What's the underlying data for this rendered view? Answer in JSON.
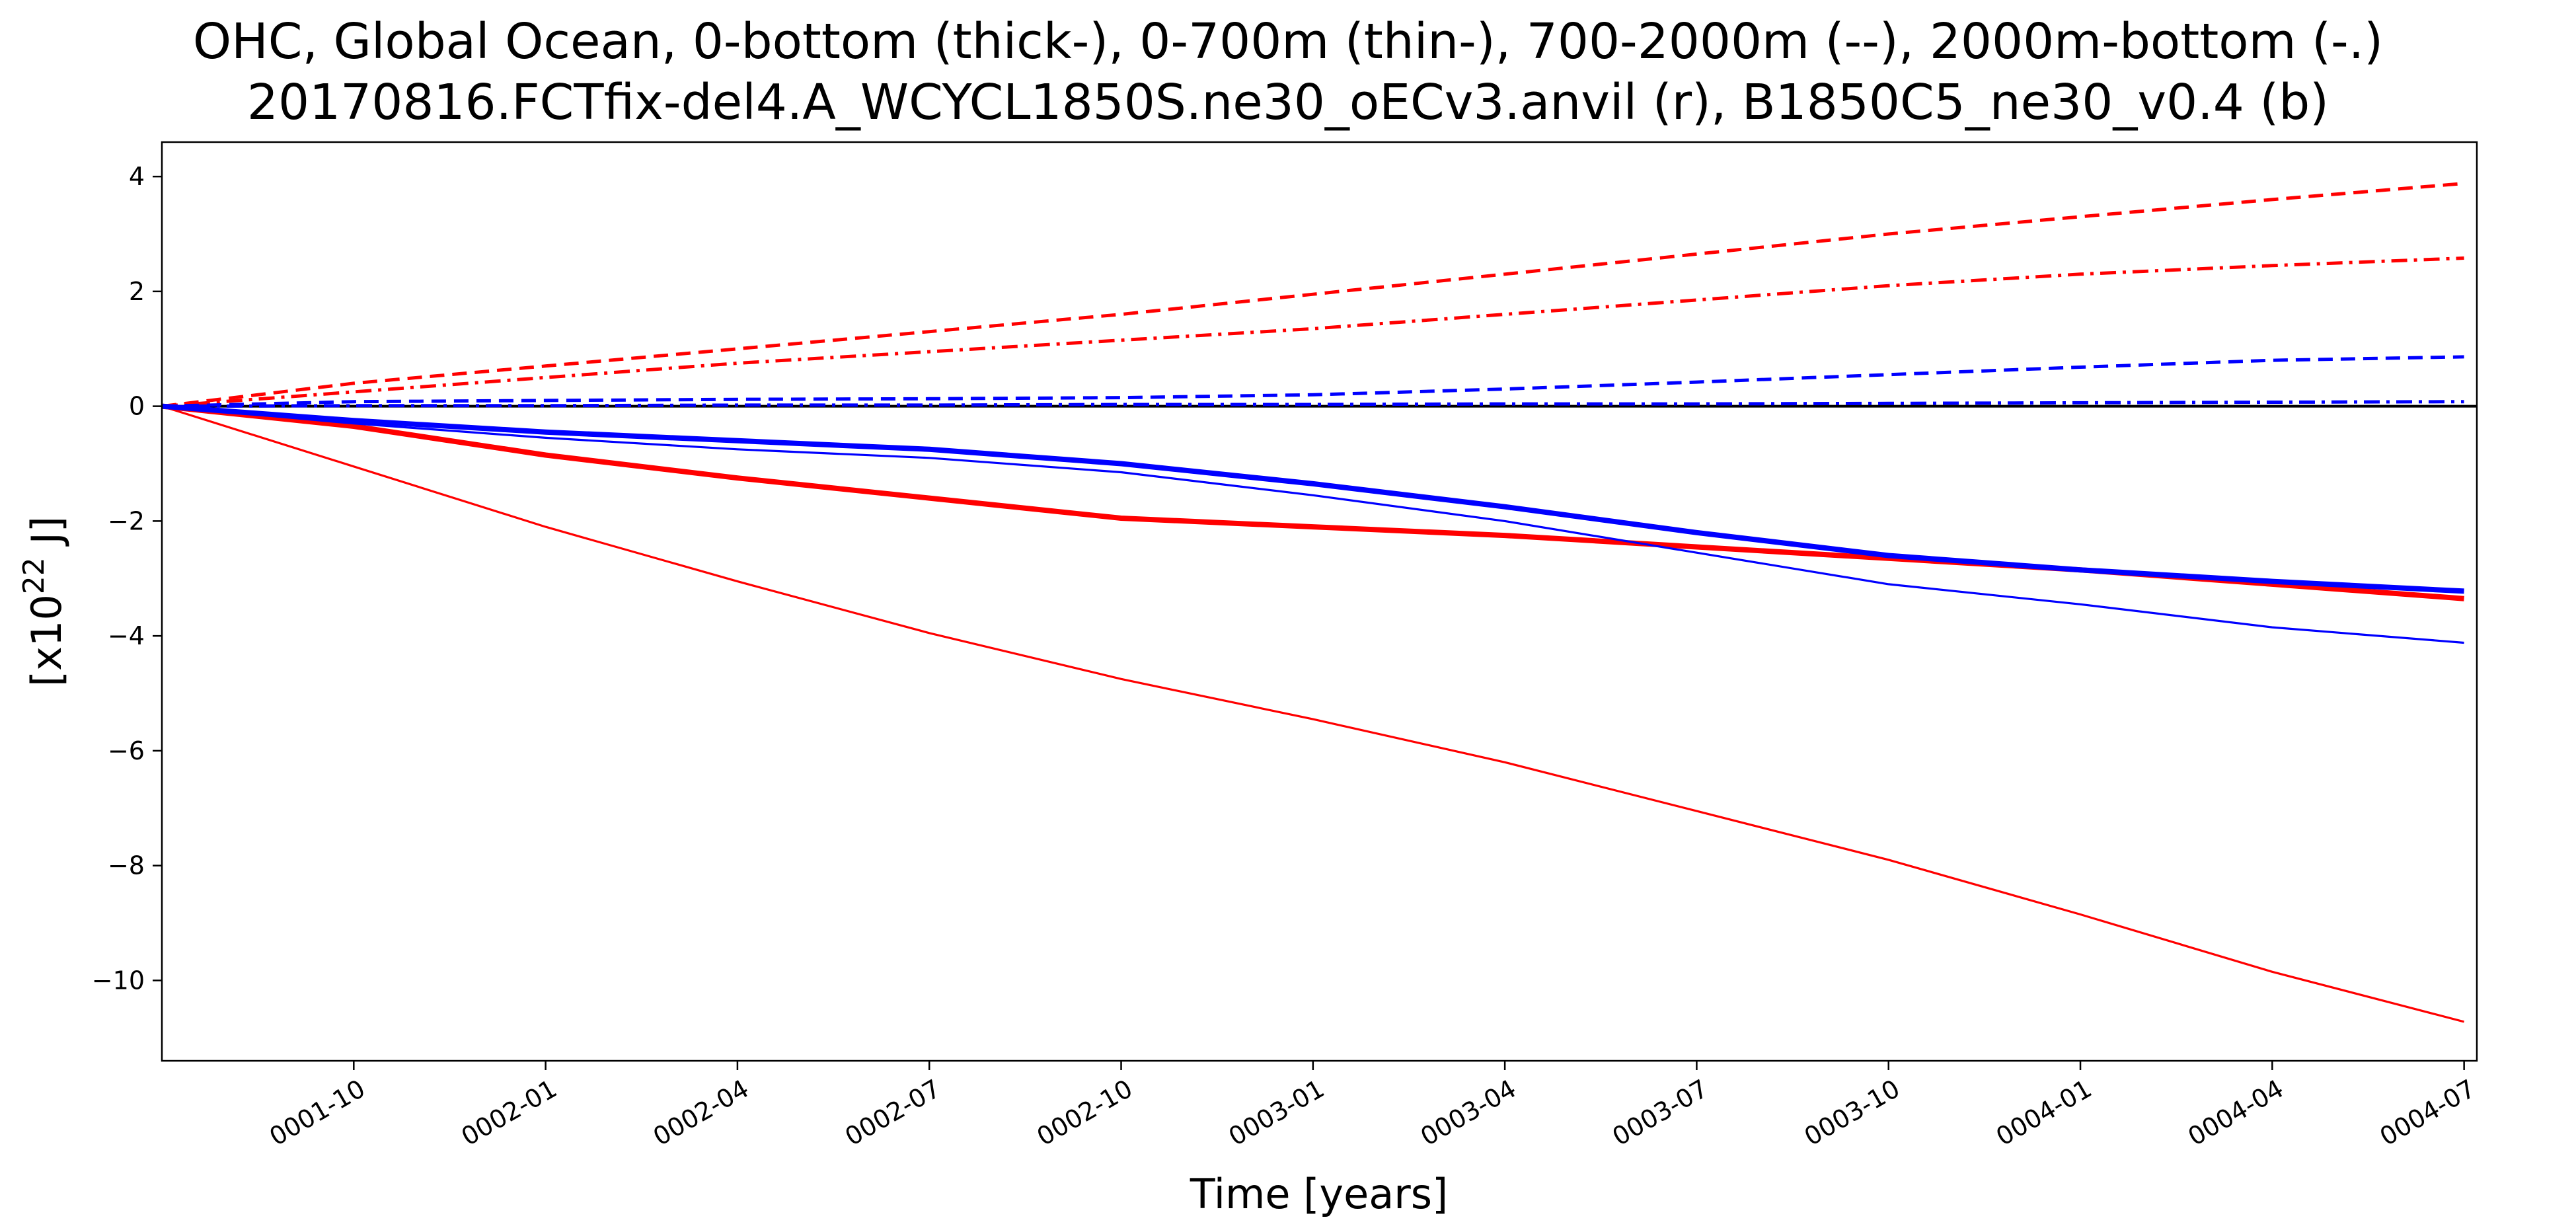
{
  "chart_data": {
    "type": "line",
    "title_line1": "OHC, Global Ocean, 0-bottom (thick-), 0-700m (thin-), 700-2000m (--), 2000m-bottom (-.)",
    "title_line2": "20170816.FCTfix-del4.A_WCYCL1850S.ne30_oECv3.anvil (r), B1850C5_ne30_v0.4 (b)",
    "xlabel": "Time [years]",
    "ylabel": "[x10",
    "ylabel_sup": "22",
    "ylabel_suffix": " J]",
    "xlim": [
      "0001-07",
      "0004-07"
    ],
    "ylim": [
      -11.4,
      4.6
    ],
    "x_ticks": [
      "0001-10",
      "0002-01",
      "0002-04",
      "0002-07",
      "0002-10",
      "0003-01",
      "0003-04",
      "0003-07",
      "0003-10",
      "0004-01",
      "0004-04",
      "0004-07"
    ],
    "y_ticks": [
      4,
      2,
      0,
      -2,
      -4,
      -6,
      -8,
      -10
    ],
    "y_tick_labels": [
      "4",
      "2",
      "0",
      "−2",
      "−4",
      "−6",
      "−8",
      "−10"
    ],
    "zero_line": true,
    "grid": false,
    "legend": "none",
    "series": [
      {
        "color": "#ff0000",
        "style": "solid",
        "width": "thick",
        "points": [
          [
            "0001-07",
            0
          ],
          [
            "0001-10",
            -0.35
          ],
          [
            "0002-01",
            -0.85
          ],
          [
            "0002-04",
            -1.25
          ],
          [
            "0002-07",
            -1.6
          ],
          [
            "0002-10",
            -1.95
          ],
          [
            "0003-01",
            -2.1
          ],
          [
            "0003-04",
            -2.25
          ],
          [
            "0003-07",
            -2.45
          ],
          [
            "0003-10",
            -2.65
          ],
          [
            "0004-01",
            -2.85
          ],
          [
            "0004-04",
            -3.1
          ],
          [
            "0004-07",
            -3.35
          ]
        ]
      },
      {
        "color": "#ff0000",
        "style": "solid",
        "width": "thin",
        "points": [
          [
            "0001-07",
            0
          ],
          [
            "0001-10",
            -1.05
          ],
          [
            "0002-01",
            -2.1
          ],
          [
            "0002-04",
            -3.05
          ],
          [
            "0002-07",
            -3.95
          ],
          [
            "0002-10",
            -4.75
          ],
          [
            "0003-01",
            -5.45
          ],
          [
            "0003-04",
            -6.2
          ],
          [
            "0003-07",
            -7.05
          ],
          [
            "0003-10",
            -7.9
          ],
          [
            "0004-01",
            -8.85
          ],
          [
            "0004-04",
            -9.85
          ],
          [
            "0004-07",
            -10.72
          ]
        ]
      },
      {
        "color": "#ff0000",
        "style": "dashed",
        "width": "medium",
        "points": [
          [
            "0001-07",
            0
          ],
          [
            "0001-10",
            0.4
          ],
          [
            "0002-01",
            0.7
          ],
          [
            "0002-04",
            1.0
          ],
          [
            "0002-07",
            1.3
          ],
          [
            "0002-10",
            1.6
          ],
          [
            "0003-01",
            1.95
          ],
          [
            "0003-04",
            2.3
          ],
          [
            "0003-07",
            2.65
          ],
          [
            "0003-10",
            3.0
          ],
          [
            "0004-01",
            3.3
          ],
          [
            "0004-04",
            3.6
          ],
          [
            "0004-07",
            3.88
          ]
        ]
      },
      {
        "color": "#ff0000",
        "style": "dashdot",
        "width": "medium",
        "points": [
          [
            "0001-07",
            0
          ],
          [
            "0001-10",
            0.25
          ],
          [
            "0002-01",
            0.5
          ],
          [
            "0002-04",
            0.75
          ],
          [
            "0002-07",
            0.95
          ],
          [
            "0002-10",
            1.15
          ],
          [
            "0003-01",
            1.35
          ],
          [
            "0003-04",
            1.6
          ],
          [
            "0003-07",
            1.85
          ],
          [
            "0003-10",
            2.1
          ],
          [
            "0004-01",
            2.3
          ],
          [
            "0004-04",
            2.45
          ],
          [
            "0004-07",
            2.58
          ]
        ]
      },
      {
        "color": "#0000ff",
        "style": "solid",
        "width": "thick",
        "points": [
          [
            "0001-07",
            0
          ],
          [
            "0001-10",
            -0.25
          ],
          [
            "0002-01",
            -0.45
          ],
          [
            "0002-04",
            -0.6
          ],
          [
            "0002-07",
            -0.75
          ],
          [
            "0002-10",
            -1.0
          ],
          [
            "0003-01",
            -1.35
          ],
          [
            "0003-04",
            -1.75
          ],
          [
            "0003-07",
            -2.2
          ],
          [
            "0003-10",
            -2.6
          ],
          [
            "0004-01",
            -2.85
          ],
          [
            "0004-04",
            -3.05
          ],
          [
            "0004-07",
            -3.22
          ]
        ]
      },
      {
        "color": "#0000ff",
        "style": "solid",
        "width": "thin",
        "points": [
          [
            "0001-07",
            0
          ],
          [
            "0001-10",
            -0.3
          ],
          [
            "0002-01",
            -0.55
          ],
          [
            "0002-04",
            -0.75
          ],
          [
            "0002-07",
            -0.9
          ],
          [
            "0002-10",
            -1.15
          ],
          [
            "0003-01",
            -1.55
          ],
          [
            "0003-04",
            -2.0
          ],
          [
            "0003-07",
            -2.55
          ],
          [
            "0003-10",
            -3.1
          ],
          [
            "0004-01",
            -3.45
          ],
          [
            "0004-04",
            -3.85
          ],
          [
            "0004-07",
            -4.12
          ]
        ]
      },
      {
        "color": "#0000ff",
        "style": "dashed",
        "width": "medium",
        "points": [
          [
            "0001-07",
            0
          ],
          [
            "0001-10",
            0.08
          ],
          [
            "0002-01",
            0.1
          ],
          [
            "0002-04",
            0.12
          ],
          [
            "0002-07",
            0.13
          ],
          [
            "0002-10",
            0.15
          ],
          [
            "0003-01",
            0.2
          ],
          [
            "0003-04",
            0.3
          ],
          [
            "0003-07",
            0.42
          ],
          [
            "0003-10",
            0.55
          ],
          [
            "0004-01",
            0.68
          ],
          [
            "0004-04",
            0.8
          ],
          [
            "0004-07",
            0.86
          ]
        ]
      },
      {
        "color": "#0000ff",
        "style": "dashdot",
        "width": "medium",
        "points": [
          [
            "0001-07",
            0
          ],
          [
            "0001-10",
            0.01
          ],
          [
            "0002-01",
            0.01
          ],
          [
            "0002-04",
            0.02
          ],
          [
            "0002-07",
            0.02
          ],
          [
            "0002-10",
            0.03
          ],
          [
            "0003-01",
            0.03
          ],
          [
            "0003-04",
            0.04
          ],
          [
            "0003-07",
            0.04
          ],
          [
            "0003-10",
            0.05
          ],
          [
            "0004-01",
            0.06
          ],
          [
            "0004-04",
            0.07
          ],
          [
            "0004-07",
            0.08
          ]
        ]
      }
    ]
  }
}
